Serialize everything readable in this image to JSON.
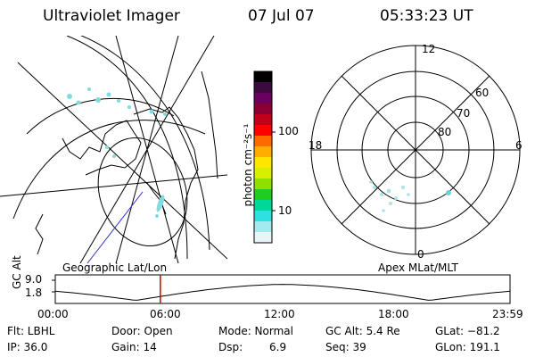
{
  "header": {
    "title": "Ultraviolet Imager",
    "date": "07 Jul 07",
    "time": "05:33:23 UT"
  },
  "colorbar": {
    "unit_label": "photon cm⁻²s⁻¹",
    "ticks": [
      "100",
      "10"
    ],
    "colors": [
      "#000000",
      "#3b0a3f",
      "#6a0060",
      "#8b0033",
      "#c2001a",
      "#ff0000",
      "#ff6a00",
      "#ffae00",
      "#ffe600",
      "#d8f000",
      "#8ee000",
      "#20cc20",
      "#00d89a",
      "#30e0e0",
      "#a0eaf0",
      "#e8f4f8"
    ]
  },
  "geo_map": {
    "label": "Geographic Lat/Lon"
  },
  "polar_plot": {
    "label": "Apex MLat/MLT",
    "mlt_labels": {
      "top": "12",
      "right": "6",
      "bottom": "0",
      "left": "18"
    },
    "lat_labels": [
      "60",
      "70",
      "80"
    ]
  },
  "altitude_plot": {
    "ylabel": "GC Alt",
    "y_ticks": [
      "9.0",
      "1.8"
    ],
    "x_ticks": [
      "00:00",
      "06:00",
      "12:00",
      "18:00",
      "23:59"
    ],
    "current_time_fraction": 0.231
  },
  "info": {
    "flt": "Flt: LBHL",
    "ip": "IP: 36.0",
    "door": "Door: Open",
    "gain": "Gain: 14",
    "mode": "Mode: Normal",
    "dsp": "Dsp:",
    "dsp_value": "6.9",
    "gc_alt": "GC Alt: 5.4 Re",
    "seq": "Seq: 39",
    "glat": "GLat: −81.2",
    "glon": "GLon: 191.1"
  }
}
